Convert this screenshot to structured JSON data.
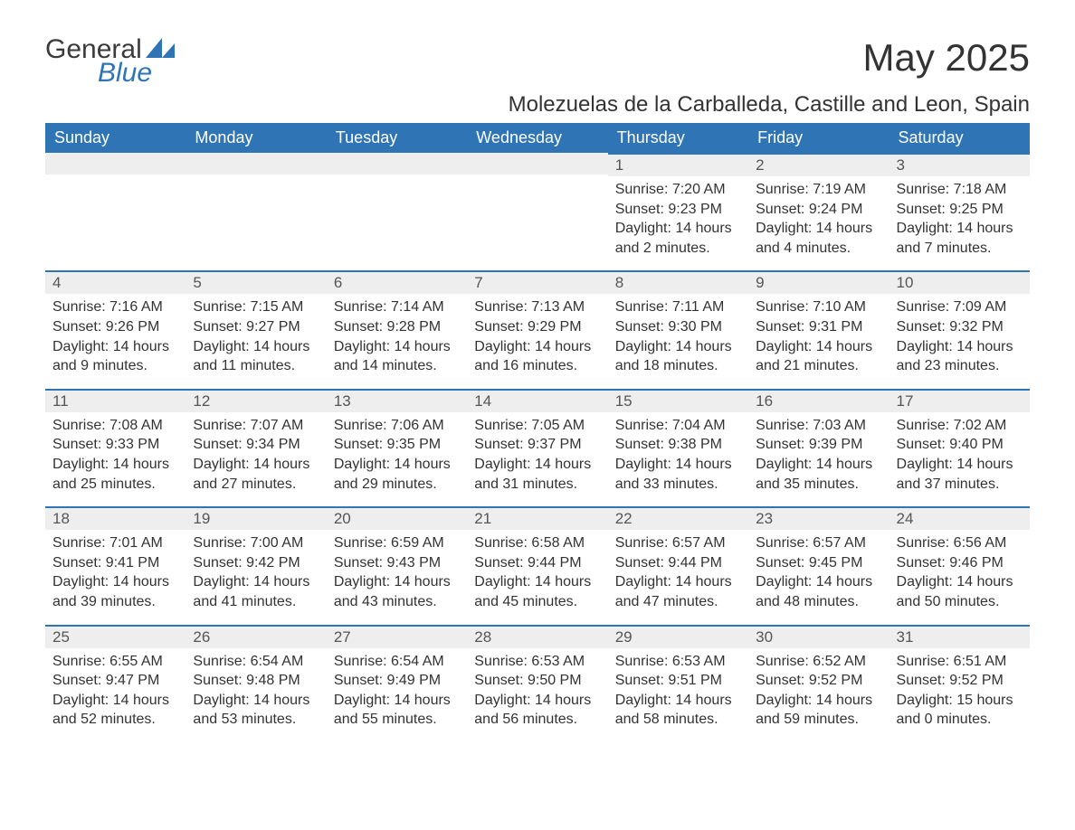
{
  "logo": {
    "text1": "General",
    "text2": "Blue"
  },
  "title": "May 2025",
  "location": "Molezuelas de la Carballeda, Castille and Leon, Spain",
  "colors": {
    "header_bg": "#2f74b5",
    "header_text": "#ffffff",
    "daynum_bg": "#eeeeee",
    "daynum_border": "#2f74b5",
    "body_text": "#333333",
    "page_bg": "#ffffff"
  },
  "typography": {
    "title_fontsize": 42,
    "location_fontsize": 24,
    "header_fontsize": 18,
    "daynum_fontsize": 17,
    "body_fontsize": 16
  },
  "weekdays": [
    "Sunday",
    "Monday",
    "Tuesday",
    "Wednesday",
    "Thursday",
    "Friday",
    "Saturday"
  ],
  "weeks": [
    [
      null,
      null,
      null,
      null,
      {
        "n": "1",
        "sr": "Sunrise: 7:20 AM",
        "ss": "Sunset: 9:23 PM",
        "d1": "Daylight: 14 hours",
        "d2": "and 2 minutes."
      },
      {
        "n": "2",
        "sr": "Sunrise: 7:19 AM",
        "ss": "Sunset: 9:24 PM",
        "d1": "Daylight: 14 hours",
        "d2": "and 4 minutes."
      },
      {
        "n": "3",
        "sr": "Sunrise: 7:18 AM",
        "ss": "Sunset: 9:25 PM",
        "d1": "Daylight: 14 hours",
        "d2": "and 7 minutes."
      }
    ],
    [
      {
        "n": "4",
        "sr": "Sunrise: 7:16 AM",
        "ss": "Sunset: 9:26 PM",
        "d1": "Daylight: 14 hours",
        "d2": "and 9 minutes."
      },
      {
        "n": "5",
        "sr": "Sunrise: 7:15 AM",
        "ss": "Sunset: 9:27 PM",
        "d1": "Daylight: 14 hours",
        "d2": "and 11 minutes."
      },
      {
        "n": "6",
        "sr": "Sunrise: 7:14 AM",
        "ss": "Sunset: 9:28 PM",
        "d1": "Daylight: 14 hours",
        "d2": "and 14 minutes."
      },
      {
        "n": "7",
        "sr": "Sunrise: 7:13 AM",
        "ss": "Sunset: 9:29 PM",
        "d1": "Daylight: 14 hours",
        "d2": "and 16 minutes."
      },
      {
        "n": "8",
        "sr": "Sunrise: 7:11 AM",
        "ss": "Sunset: 9:30 PM",
        "d1": "Daylight: 14 hours",
        "d2": "and 18 minutes."
      },
      {
        "n": "9",
        "sr": "Sunrise: 7:10 AM",
        "ss": "Sunset: 9:31 PM",
        "d1": "Daylight: 14 hours",
        "d2": "and 21 minutes."
      },
      {
        "n": "10",
        "sr": "Sunrise: 7:09 AM",
        "ss": "Sunset: 9:32 PM",
        "d1": "Daylight: 14 hours",
        "d2": "and 23 minutes."
      }
    ],
    [
      {
        "n": "11",
        "sr": "Sunrise: 7:08 AM",
        "ss": "Sunset: 9:33 PM",
        "d1": "Daylight: 14 hours",
        "d2": "and 25 minutes."
      },
      {
        "n": "12",
        "sr": "Sunrise: 7:07 AM",
        "ss": "Sunset: 9:34 PM",
        "d1": "Daylight: 14 hours",
        "d2": "and 27 minutes."
      },
      {
        "n": "13",
        "sr": "Sunrise: 7:06 AM",
        "ss": "Sunset: 9:35 PM",
        "d1": "Daylight: 14 hours",
        "d2": "and 29 minutes."
      },
      {
        "n": "14",
        "sr": "Sunrise: 7:05 AM",
        "ss": "Sunset: 9:37 PM",
        "d1": "Daylight: 14 hours",
        "d2": "and 31 minutes."
      },
      {
        "n": "15",
        "sr": "Sunrise: 7:04 AM",
        "ss": "Sunset: 9:38 PM",
        "d1": "Daylight: 14 hours",
        "d2": "and 33 minutes."
      },
      {
        "n": "16",
        "sr": "Sunrise: 7:03 AM",
        "ss": "Sunset: 9:39 PM",
        "d1": "Daylight: 14 hours",
        "d2": "and 35 minutes."
      },
      {
        "n": "17",
        "sr": "Sunrise: 7:02 AM",
        "ss": "Sunset: 9:40 PM",
        "d1": "Daylight: 14 hours",
        "d2": "and 37 minutes."
      }
    ],
    [
      {
        "n": "18",
        "sr": "Sunrise: 7:01 AM",
        "ss": "Sunset: 9:41 PM",
        "d1": "Daylight: 14 hours",
        "d2": "and 39 minutes."
      },
      {
        "n": "19",
        "sr": "Sunrise: 7:00 AM",
        "ss": "Sunset: 9:42 PM",
        "d1": "Daylight: 14 hours",
        "d2": "and 41 minutes."
      },
      {
        "n": "20",
        "sr": "Sunrise: 6:59 AM",
        "ss": "Sunset: 9:43 PM",
        "d1": "Daylight: 14 hours",
        "d2": "and 43 minutes."
      },
      {
        "n": "21",
        "sr": "Sunrise: 6:58 AM",
        "ss": "Sunset: 9:44 PM",
        "d1": "Daylight: 14 hours",
        "d2": "and 45 minutes."
      },
      {
        "n": "22",
        "sr": "Sunrise: 6:57 AM",
        "ss": "Sunset: 9:44 PM",
        "d1": "Daylight: 14 hours",
        "d2": "and 47 minutes."
      },
      {
        "n": "23",
        "sr": "Sunrise: 6:57 AM",
        "ss": "Sunset: 9:45 PM",
        "d1": "Daylight: 14 hours",
        "d2": "and 48 minutes."
      },
      {
        "n": "24",
        "sr": "Sunrise: 6:56 AM",
        "ss": "Sunset: 9:46 PM",
        "d1": "Daylight: 14 hours",
        "d2": "and 50 minutes."
      }
    ],
    [
      {
        "n": "25",
        "sr": "Sunrise: 6:55 AM",
        "ss": "Sunset: 9:47 PM",
        "d1": "Daylight: 14 hours",
        "d2": "and 52 minutes."
      },
      {
        "n": "26",
        "sr": "Sunrise: 6:54 AM",
        "ss": "Sunset: 9:48 PM",
        "d1": "Daylight: 14 hours",
        "d2": "and 53 minutes."
      },
      {
        "n": "27",
        "sr": "Sunrise: 6:54 AM",
        "ss": "Sunset: 9:49 PM",
        "d1": "Daylight: 14 hours",
        "d2": "and 55 minutes."
      },
      {
        "n": "28",
        "sr": "Sunrise: 6:53 AM",
        "ss": "Sunset: 9:50 PM",
        "d1": "Daylight: 14 hours",
        "d2": "and 56 minutes."
      },
      {
        "n": "29",
        "sr": "Sunrise: 6:53 AM",
        "ss": "Sunset: 9:51 PM",
        "d1": "Daylight: 14 hours",
        "d2": "and 58 minutes."
      },
      {
        "n": "30",
        "sr": "Sunrise: 6:52 AM",
        "ss": "Sunset: 9:52 PM",
        "d1": "Daylight: 14 hours",
        "d2": "and 59 minutes."
      },
      {
        "n": "31",
        "sr": "Sunrise: 6:51 AM",
        "ss": "Sunset: 9:52 PM",
        "d1": "Daylight: 15 hours",
        "d2": "and 0 minutes."
      }
    ]
  ]
}
